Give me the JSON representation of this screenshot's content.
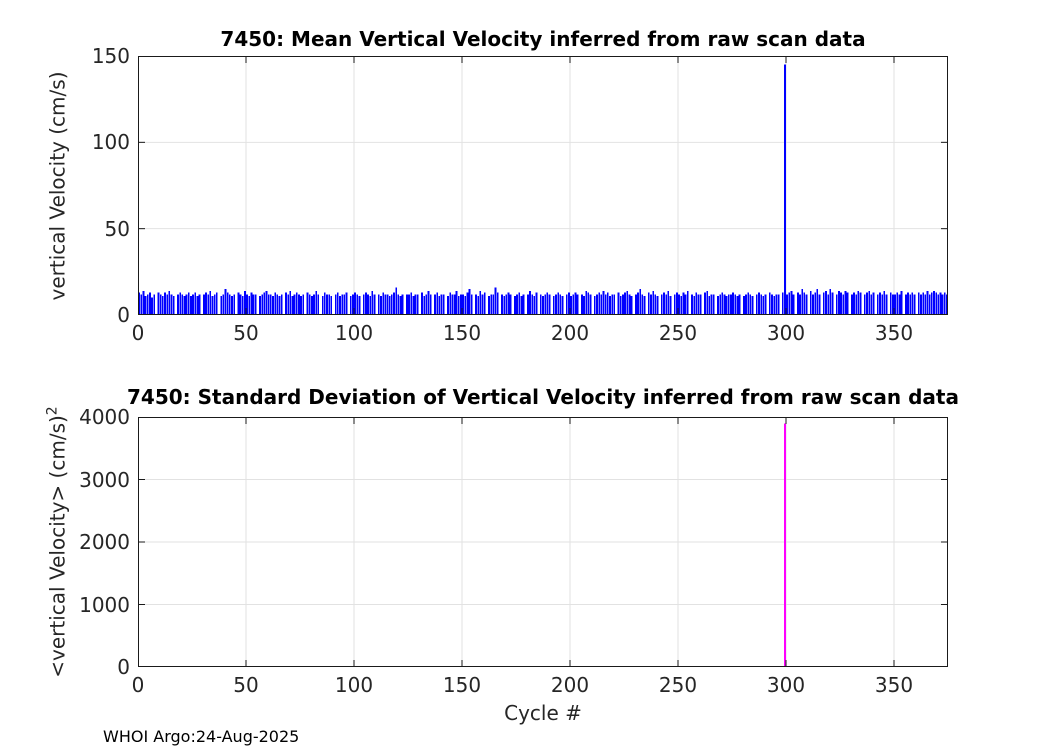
{
  "figure": {
    "xlabel": "Cycle #",
    "footer": "WHOI Argo:24-Aug-2025"
  },
  "colors": {
    "mean_bar": "#0000ff",
    "std_bar": "#ff00ff",
    "grid": "#e2e2e2",
    "axis": "#1a1a1a",
    "tick_label": "#262626"
  },
  "chart_data": [
    {
      "type": "bar",
      "title": "7450: Mean Vertical Velocity inferred from raw scan data",
      "ylabel": "vertical Velocity (cm/s)",
      "ylabel_sup": "",
      "xlabel": "",
      "xlim": [
        0,
        375
      ],
      "ylim": [
        0,
        150
      ],
      "xticks": [
        0,
        50,
        100,
        150,
        200,
        250,
        300,
        350
      ],
      "yticks": [
        0,
        50,
        100,
        150
      ],
      "grid": true,
      "color": "#0000ff",
      "spike": {
        "x": 299,
        "value": 145
      },
      "values": [
        13,
        12,
        14,
        11,
        12,
        13,
        10,
        12,
        0,
        13,
        12,
        11,
        13,
        12,
        14,
        12,
        11,
        0,
        12,
        13,
        12,
        11,
        12,
        13,
        11,
        12,
        13,
        11,
        12,
        0,
        12,
        13,
        12,
        14,
        11,
        12,
        13,
        0,
        11,
        12,
        15,
        13,
        12,
        11,
        12,
        0,
        13,
        12,
        11,
        14,
        12,
        11,
        13,
        12,
        12,
        0,
        11,
        12,
        13,
        14,
        12,
        12,
        11,
        13,
        12,
        11,
        12,
        0,
        13,
        12,
        14,
        11,
        12,
        13,
        12,
        11,
        12,
        0,
        13,
        12,
        11,
        12,
        14,
        12,
        0,
        11,
        13,
        12,
        12,
        11,
        0,
        12,
        13,
        11,
        12,
        12,
        13,
        0,
        11,
        12,
        13,
        12,
        11,
        0,
        12,
        13,
        12,
        11,
        14,
        12,
        0,
        12,
        11,
        13,
        12,
        12,
        11,
        12,
        13,
        16,
        12,
        11,
        12,
        0,
        12,
        12,
        13,
        11,
        12,
        12,
        0,
        13,
        11,
        12,
        14,
        12,
        0,
        12,
        13,
        11,
        12,
        12,
        0,
        11,
        13,
        12,
        12,
        14,
        11,
        12,
        12,
        11,
        13,
        15,
        12,
        0,
        12,
        11,
        14,
        12,
        13,
        0,
        11,
        12,
        12,
        16,
        13,
        0,
        12,
        11,
        12,
        13,
        12,
        0,
        11,
        12,
        13,
        11,
        12,
        0,
        12,
        14,
        12,
        11,
        13,
        0,
        12,
        11,
        12,
        13,
        12,
        0,
        11,
        12,
        13,
        12,
        11,
        0,
        12,
        13,
        11,
        12,
        13,
        12,
        0,
        12,
        11,
        14,
        13,
        12,
        0,
        11,
        12,
        13,
        12,
        14,
        12,
        13,
        11,
        12,
        12,
        0,
        13,
        11,
        12,
        13,
        14,
        12,
        11,
        0,
        12,
        13,
        15,
        12,
        11,
        0,
        13,
        12,
        14,
        12,
        11,
        0,
        12,
        13,
        12,
        14,
        11,
        0,
        12,
        13,
        12,
        11,
        13,
        12,
        14,
        0,
        12,
        11,
        13,
        12,
        12,
        0,
        13,
        14,
        11,
        12,
        12,
        0,
        11,
        12,
        13,
        12,
        11,
        12,
        12,
        13,
        12,
        11,
        12,
        0,
        11,
        12,
        13,
        12,
        11,
        0,
        12,
        13,
        12,
        11,
        12,
        0,
        13,
        12,
        11,
        12,
        12,
        0,
        13,
        145,
        12,
        13,
        14,
        12,
        0,
        13,
        12,
        15,
        13,
        12,
        0,
        14,
        12,
        13,
        15,
        12,
        0,
        13,
        14,
        12,
        15,
        13,
        0,
        12,
        14,
        13,
        12,
        14,
        13,
        0,
        12,
        13,
        12,
        14,
        13,
        0,
        12,
        13,
        14,
        12,
        13,
        0,
        12,
        13,
        12,
        14,
        12,
        0,
        13,
        12,
        12,
        13,
        12,
        14,
        0,
        12,
        13,
        12,
        13,
        12,
        0,
        13,
        12,
        13,
        12,
        14,
        12,
        13,
        14,
        13,
        12,
        13,
        12,
        13,
        12
      ]
    },
    {
      "type": "bar",
      "title": "7450: Standard Deviation of Vertical Velocity inferred from raw scan data",
      "ylabel": "<vertical Velocity> (cm/s)",
      "ylabel_sup": "2",
      "xlabel": "Cycle #",
      "xlim": [
        0,
        375
      ],
      "ylim": [
        0,
        4000
      ],
      "xticks": [
        0,
        50,
        100,
        150,
        200,
        250,
        300,
        350
      ],
      "yticks": [
        0,
        1000,
        2000,
        3000,
        4000
      ],
      "grid": true,
      "color": "#ff00ff",
      "spike": {
        "x": 299,
        "value": 3900
      },
      "values_rle": [
        [
          299,
          0
        ],
        [
          1,
          3900
        ],
        [
          75,
          0
        ]
      ]
    }
  ]
}
